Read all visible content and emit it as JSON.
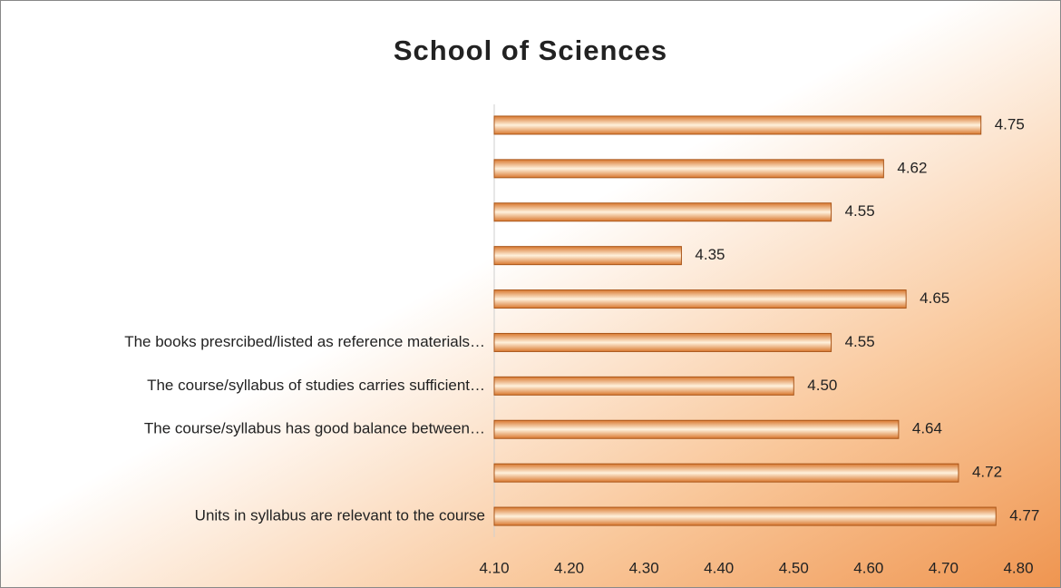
{
  "chart_data": {
    "type": "bar",
    "orientation": "horizontal",
    "title": "School of Sciences",
    "categories": [
      null,
      null,
      null,
      null,
      null,
      "The books presrcibed/listed as reference materials…",
      "The course/syllabus of studies carries sufficient…",
      "The course/syllabus has good balance between…",
      null,
      "Units in syllabus are relevant to the course"
    ],
    "values": [
      4.75,
      4.62,
      4.55,
      4.35,
      4.65,
      4.55,
      4.5,
      4.64,
      4.72,
      4.77
    ],
    "value_labels": [
      "4.75",
      "4.62",
      "4.55",
      "4.35",
      "4.65",
      "4.55",
      "4.50",
      "4.64",
      "4.72",
      "4.77"
    ],
    "color": "#d9782f",
    "xlim": [
      4.1,
      4.8
    ],
    "xticks": [
      {
        "value": 4.1,
        "label": "4.10"
      },
      {
        "value": 4.2,
        "label": "4.20"
      },
      {
        "value": 4.3,
        "label": "4.30"
      },
      {
        "value": 4.4,
        "label": "4.40"
      },
      {
        "value": 4.5,
        "label": "4.50"
      },
      {
        "value": 4.6,
        "label": "4.60"
      },
      {
        "value": 4.7,
        "label": "4.70"
      },
      {
        "value": 4.8,
        "label": "4.80"
      }
    ],
    "grid": false
  }
}
